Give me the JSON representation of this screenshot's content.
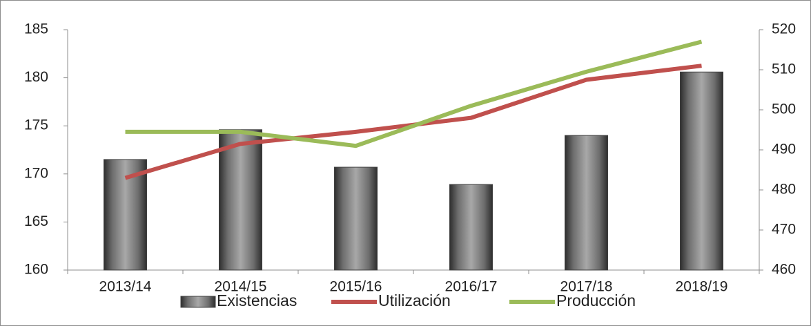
{
  "chart_data": {
    "type": "bar_line",
    "categories": [
      "2013/14",
      "2014/15",
      "2015/16",
      "2016/17",
      "2017/18",
      "2018/19"
    ],
    "series": [
      {
        "name": "Existencias",
        "type": "bar",
        "color": "#808080",
        "values": [
          171.5,
          174.6,
          170.7,
          168.9,
          174.0,
          180.6
        ]
      },
      {
        "name": "Utilización",
        "type": "line",
        "axis": "y2",
        "color": "#c0504d",
        "values": [
          483,
          491.5,
          494.5,
          498,
          507.5,
          511
        ]
      },
      {
        "name": "Producción",
        "type": "line",
        "axis": "y2",
        "color": "#9bbb59",
        "values": [
          494.5,
          494.5,
          491,
          501,
          509.5,
          517
        ]
      }
    ],
    "ylim": [
      160,
      185
    ],
    "yticks": [
      160,
      165,
      170,
      175,
      180,
      185
    ],
    "y2lim": [
      460,
      520
    ],
    "y2ticks": [
      460,
      470,
      480,
      490,
      500,
      510,
      520
    ],
    "legend": "bottom"
  }
}
